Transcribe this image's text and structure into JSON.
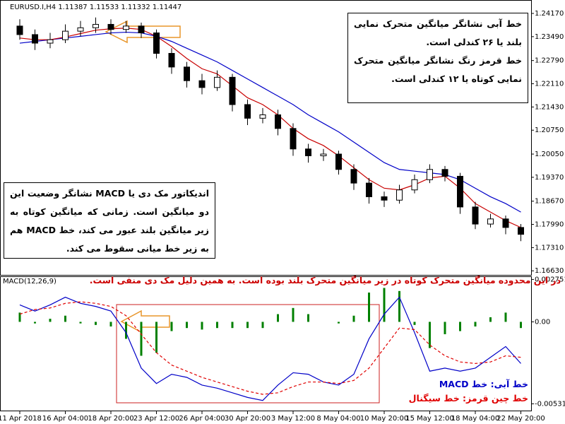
{
  "chart_data": [
    {
      "type": "candlestick",
      "title": "EURUSD.I,H4  1.11387 1.11533 1.11332 1.11447",
      "open": [
        1.238,
        1.2355,
        1.233,
        1.234,
        1.2365,
        1.2375,
        1.2385,
        1.237,
        1.238,
        1.236,
        1.23,
        1.226,
        1.222,
        1.22,
        1.223,
        1.215,
        1.211,
        1.212,
        1.208,
        1.202,
        1.2,
        1.2005,
        1.196,
        1.192,
        1.188,
        1.187,
        1.19,
        1.193,
        1.196,
        1.194,
        1.185,
        1.18,
        1.1815,
        1.179
      ],
      "high": [
        1.24,
        1.237,
        1.236,
        1.2385,
        1.2395,
        1.2405,
        1.24,
        1.2395,
        1.239,
        1.237,
        1.2315,
        1.2275,
        1.224,
        1.225,
        1.224,
        1.2165,
        1.214,
        1.2135,
        1.2095,
        1.2035,
        1.202,
        1.2015,
        1.1975,
        1.1935,
        1.1895,
        1.1915,
        1.1945,
        1.1975,
        1.197,
        1.195,
        1.1865,
        1.183,
        1.1825,
        1.18
      ],
      "low": [
        1.234,
        1.231,
        1.2315,
        1.233,
        1.235,
        1.236,
        1.2355,
        1.236,
        1.2345,
        1.2285,
        1.224,
        1.22,
        1.218,
        1.219,
        1.213,
        1.209,
        1.2095,
        1.206,
        1.2,
        1.198,
        1.1985,
        1.1945,
        1.19,
        1.186,
        1.185,
        1.186,
        1.189,
        1.192,
        1.1925,
        1.183,
        1.1785,
        1.179,
        1.177,
        1.175
      ],
      "close": [
        1.2355,
        1.233,
        1.234,
        1.2365,
        1.2375,
        1.2385,
        1.237,
        1.238,
        1.236,
        1.23,
        1.226,
        1.222,
        1.22,
        1.223,
        1.215,
        1.211,
        1.212,
        1.208,
        1.202,
        1.2,
        1.2005,
        1.196,
        1.192,
        1.188,
        1.187,
        1.19,
        1.193,
        1.196,
        1.194,
        1.185,
        1.18,
        1.1815,
        1.179,
        1.177
      ],
      "candle_color": "#000000",
      "series": [
        {
          "color": "#0000c8",
          "values": [
            1.233,
            1.2335,
            1.234,
            1.2345,
            1.235,
            1.2355,
            1.236,
            1.2362,
            1.236,
            1.235,
            1.2335,
            1.2315,
            1.2295,
            1.2275,
            1.225,
            1.2225,
            1.22,
            1.2175,
            1.215,
            1.212,
            1.2095,
            1.207,
            1.204,
            1.201,
            1.198,
            1.196,
            1.1955,
            1.195,
            1.1945,
            1.193,
            1.1905,
            1.188,
            1.186,
            1.1835
          ]
        },
        {
          "color": "#c80000",
          "values": [
            1.2345,
            1.234,
            1.234,
            1.2348,
            1.2358,
            1.2368,
            1.2372,
            1.2374,
            1.237,
            1.235,
            1.232,
            1.2285,
            1.2255,
            1.224,
            1.2205,
            1.217,
            1.215,
            1.212,
            1.208,
            1.205,
            1.203,
            1.2,
            1.1965,
            1.193,
            1.1905,
            1.19,
            1.1915,
            1.1935,
            1.194,
            1.1905,
            1.186,
            1.1835,
            1.181,
            1.179
          ]
        }
      ],
      "ylim": [
        1.1649,
        1.2446
      ],
      "yticks": [
        {
          "value": 1.2417,
          "label": "1.24170"
        },
        {
          "value": 1.2349,
          "label": "1.23490"
        },
        {
          "value": 1.2279,
          "label": "1.22790"
        },
        {
          "value": 1.2211,
          "label": "1.22110"
        },
        {
          "value": 1.2143,
          "label": "1.21430"
        },
        {
          "value": 1.2075,
          "label": "1.20750"
        },
        {
          "value": 1.2005,
          "label": "1.20050"
        },
        {
          "value": 1.1937,
          "label": "1.19370"
        },
        {
          "value": 1.1867,
          "label": "1.18670"
        },
        {
          "value": 1.1799,
          "label": "1.17990"
        },
        {
          "value": 1.1731,
          "label": "1.17310"
        },
        {
          "value": 1.1663,
          "label": "1.16630"
        }
      ],
      "notes": [
        "خط آبی نشانگر میانگین متحرک نمایی بلند یا ۲۶ کندلی است.",
        "خط قرمز رنگ نشانگر میانگین متحرک نمایی کوتاه یا ۱۲ کندلی است.",
        "اندیکاتور مک دی یا MACD نشانگر وضعیت این دو میانگین است. زمانی که میانگین کوتاه به زیر میانگین بلند عبور می کند، خط MACD هم به زیر خط میانی سقوط می کند."
      ]
    },
    {
      "type": "macd",
      "title": "MACD(12,26,9)",
      "categories": [
        "11 Apr 2018",
        null,
        null,
        "16 Apr 04:00",
        null,
        null,
        "18 Apr 20:00",
        null,
        null,
        "23 Apr 12:00",
        null,
        null,
        "26 Apr 04:00",
        null,
        null,
        "30 Apr 20:00",
        null,
        null,
        "3 May 12:00",
        null,
        null,
        "8 May 04:00",
        null,
        null,
        "10 May 20:00",
        null,
        null,
        "15 May 12:00",
        null,
        null,
        "18 May 04:00",
        null,
        null,
        "22 May 20:00"
      ],
      "histogram": {
        "color": "#008000",
        "values": [
          0.0006,
          -0.0001,
          0.0002,
          0.0004,
          -0.0001,
          -0.0002,
          -0.0003,
          -0.0011,
          -0.0022,
          -0.002,
          -0.0006,
          -0.0004,
          -0.0005,
          -0.0004,
          -0.0004,
          -0.0004,
          -0.0004,
          0.0005,
          0.0009,
          0.0005,
          0.0,
          -0.0001,
          0.0004,
          0.0019,
          0.0022,
          0.002,
          -0.0002,
          -0.0017,
          -0.0008,
          -0.0006,
          -0.0003,
          0.0003,
          0.0006,
          -0.0004
        ]
      },
      "series": [
        {
          "name": "خط آبی: خط MACD",
          "color": "#0000c8",
          "style": "solid",
          "values": [
            0.0011,
            0.0007,
            0.0011,
            0.0016,
            0.0012,
            0.001,
            0.0007,
            -0.0007,
            -0.003,
            -0.004,
            -0.0034,
            -0.0036,
            -0.0041,
            -0.0043,
            -0.0046,
            -0.0049,
            -0.0051,
            -0.0041,
            -0.0033,
            -0.0034,
            -0.0039,
            -0.0041,
            -0.0034,
            -0.0011,
            0.0005,
            0.0016,
            -0.0007,
            -0.0032,
            -0.003,
            -0.0032,
            -0.003,
            -0.0023,
            -0.0016,
            -0.0027
          ]
        },
        {
          "name": "خط چین قرمز: خط سیگنال",
          "color": "#e00000",
          "style": "dashed",
          "values": [
            0.0005,
            0.0008,
            0.0009,
            0.0012,
            0.0013,
            0.0012,
            0.001,
            0.0004,
            -0.0008,
            -0.002,
            -0.0028,
            -0.0032,
            -0.0036,
            -0.0039,
            -0.0042,
            -0.0045,
            -0.0047,
            -0.0046,
            -0.0042,
            -0.0039,
            -0.0039,
            -0.004,
            -0.0038,
            -0.003,
            -0.0017,
            -0.0004,
            -0.0005,
            -0.0015,
            -0.0022,
            -0.0026,
            -0.0027,
            -0.0026,
            -0.0022,
            -0.0023
          ]
        }
      ],
      "ylim": [
        -0.0058,
        0.003
      ],
      "yticks": [
        0.002751,
        {
          "value": 0,
          "label": "0.00"
        },
        -0.005318
      ],
      "notes": [
        "در این محدوده میانگین متحرک کوتاه در زیر میانگین متحرک بلند بوده است. به همین دلیل مک دی منفی است."
      ]
    }
  ]
}
